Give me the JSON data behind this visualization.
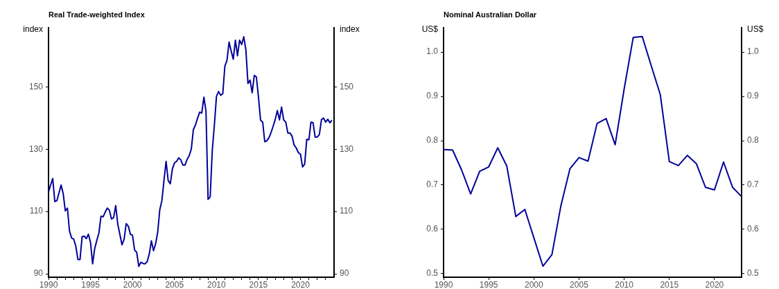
{
  "chart_data": [
    {
      "type": "line",
      "title": "Real Trade-weighted Index",
      "ylabel": "index",
      "y2label": "index",
      "x": [
        1990,
        1990.25,
        1990.5,
        1990.75,
        1991,
        1991.25,
        1991.5,
        1991.75,
        1992,
        1992.25,
        1992.5,
        1992.75,
        1993,
        1993.25,
        1993.5,
        1993.75,
        1994,
        1994.25,
        1994.5,
        1994.75,
        1995,
        1995.25,
        1995.5,
        1995.75,
        1996,
        1996.25,
        1996.5,
        1996.75,
        1997,
        1997.25,
        1997.5,
        1997.75,
        1998,
        1998.25,
        1998.5,
        1998.75,
        1999,
        1999.25,
        1999.5,
        1999.75,
        2000,
        2000.25,
        2000.5,
        2000.75,
        2001,
        2001.25,
        2001.5,
        2001.75,
        2002,
        2002.25,
        2002.5,
        2002.75,
        2003,
        2003.25,
        2003.5,
        2003.75,
        2004,
        2004.25,
        2004.5,
        2004.75,
        2005,
        2005.25,
        2005.5,
        2005.75,
        2006,
        2006.25,
        2006.5,
        2006.75,
        2007,
        2007.25,
        2007.5,
        2007.75,
        2008,
        2008.25,
        2008.5,
        2008.75,
        2009,
        2009.25,
        2009.5,
        2009.75,
        2010,
        2010.25,
        2010.5,
        2010.75,
        2011,
        2011.25,
        2011.5,
        2011.75,
        2012,
        2012.25,
        2012.5,
        2012.75,
        2013,
        2013.25,
        2013.5,
        2013.75,
        2014,
        2014.25,
        2014.5,
        2014.75,
        2015,
        2015.25,
        2015.5,
        2015.75,
        2016,
        2016.25,
        2016.5,
        2016.75,
        2017,
        2017.25,
        2017.5,
        2017.75,
        2018,
        2018.25,
        2018.5,
        2018.75,
        2019,
        2019.25,
        2019.5,
        2019.75,
        2020,
        2020.25,
        2020.5,
        2020.75,
        2021,
        2021.25,
        2021.5,
        2021.75,
        2022,
        2022.25,
        2022.5,
        2022.75,
        2023,
        2023.25,
        2023.5,
        2023.75
      ],
      "series": [
        {
          "color": "#000099",
          "values": [
            116.3,
            118.5,
            120.6,
            113.2,
            113.5,
            116.0,
            118.5,
            115.7,
            110.2,
            111.1,
            103.7,
            101.5,
            101.1,
            98.9,
            94.6,
            94.6,
            101.9,
            102.1,
            101.3,
            102.7,
            100.1,
            93.2,
            98.1,
            100.7,
            103.1,
            108.5,
            108.3,
            109.8,
            111.1,
            110.4,
            107.6,
            108.0,
            111.9,
            105.9,
            102.6,
            99.3,
            101.1,
            106.1,
            105.3,
            102.7,
            102.4,
            97.6,
            96.9,
            92.4,
            93.7,
            93.3,
            93.2,
            93.9,
            96.4,
            100.6,
            97.4,
            99.6,
            103.3,
            110.6,
            113.5,
            120.0,
            126.1,
            119.9,
            118.9,
            123.7,
            125.6,
            126.1,
            127.2,
            126.6,
            124.9,
            124.9,
            126.7,
            127.9,
            130.0,
            136.3,
            137.8,
            140.0,
            141.9,
            141.6,
            146.7,
            142.2,
            113.9,
            114.7,
            129.6,
            137.8,
            147.0,
            148.5,
            147.3,
            147.8,
            156.7,
            158.5,
            164.4,
            161.5,
            158.9,
            165.0,
            160.0,
            165.0,
            163.6,
            166.1,
            161.9,
            151.1,
            152.2,
            148.1,
            153.7,
            153.2,
            146.7,
            139.3,
            138.7,
            132.4,
            132.7,
            133.7,
            135.4,
            137.4,
            139.6,
            142.4,
            139.4,
            143.5,
            139.4,
            138.7,
            135.2,
            135.2,
            134.2,
            131.3,
            130.4,
            128.9,
            128.4,
            124.3,
            125.2,
            133.2,
            133.0,
            138.7,
            138.5,
            133.9,
            133.9,
            134.7,
            139.5,
            140.0,
            138.7,
            139.6,
            138.5,
            139.3
          ]
        }
      ],
      "xlim": [
        1990,
        2024
      ],
      "xticks": [
        1990,
        {
          "value": 1991,
          "label": null
        },
        {
          "value": 1992,
          "label": null
        },
        {
          "value": 1993,
          "label": null
        },
        {
          "value": 1994,
          "label": null
        },
        1995,
        {
          "value": 1996,
          "label": null
        },
        {
          "value": 1997,
          "label": null
        },
        {
          "value": 1998,
          "label": null
        },
        {
          "value": 1999,
          "label": null
        },
        2000,
        {
          "value": 2001,
          "label": null
        },
        {
          "value": 2002,
          "label": null
        },
        {
          "value": 2003,
          "label": null
        },
        {
          "value": 2004,
          "label": null
        },
        2005,
        {
          "value": 2006,
          "label": null
        },
        {
          "value": 2007,
          "label": null
        },
        {
          "value": 2008,
          "label": null
        },
        {
          "value": 2009,
          "label": null
        },
        2010,
        {
          "value": 2011,
          "label": null
        },
        {
          "value": 2012,
          "label": null
        },
        {
          "value": 2013,
          "label": null
        },
        {
          "value": 2014,
          "label": null
        },
        2015,
        {
          "value": 2016,
          "label": null
        },
        {
          "value": 2017,
          "label": null
        },
        {
          "value": 2018,
          "label": null
        },
        {
          "value": 2019,
          "label": null
        },
        2020,
        {
          "value": 2021,
          "label": null
        },
        {
          "value": 2022,
          "label": null
        },
        {
          "value": 2023,
          "label": null
        }
      ],
      "ylim": [
        88.9,
        169
      ],
      "yticks": [
        90,
        110,
        130,
        150
      ],
      "y2lim": [
        88.9,
        169
      ],
      "y2ticks": [
        90,
        110,
        130,
        150
      ],
      "grid": false,
      "legend": false,
      "marker": "none",
      "line_style": "solid"
    },
    {
      "type": "line",
      "title": "Nominal Australian Dollar",
      "ylabel": "US$",
      "y2label": "US$",
      "x": [
        1990,
        1991,
        1992,
        1993,
        1994,
        1995,
        1996,
        1997,
        1998,
        1999,
        2000,
        2001,
        2002,
        2003,
        2004,
        2005,
        2006,
        2007,
        2008,
        2009,
        2010,
        2011,
        2012,
        2013,
        2014,
        2015,
        2016,
        2017,
        2018,
        2019,
        2020,
        2021,
        2022,
        2023
      ],
      "series": [
        {
          "color": "#000099",
          "values": [
            0.78,
            0.779,
            0.734,
            0.68,
            0.731,
            0.741,
            0.784,
            0.743,
            0.629,
            0.645,
            0.581,
            0.517,
            0.543,
            0.654,
            0.737,
            0.762,
            0.754,
            0.839,
            0.85,
            0.791,
            0.917,
            1.033,
            1.035,
            0.969,
            0.904,
            0.753,
            0.744,
            0.767,
            0.748,
            0.695,
            0.689,
            0.752,
            0.695,
            0.674
          ]
        }
      ],
      "xlim": [
        1990,
        2023
      ],
      "xticks": [
        1990,
        1995,
        2000,
        2005,
        2010,
        2015,
        2020
      ],
      "ylim": [
        0.492,
        1.055
      ],
      "yticks": [
        0.5,
        0.6,
        0.7,
        0.8,
        0.9,
        {
          "value": 1.0,
          "label": "1.0"
        }
      ],
      "y2lim": [
        0.492,
        1.055
      ],
      "y2ticks": [
        0.5,
        0.6,
        0.7,
        0.8,
        0.9,
        {
          "value": 1.0,
          "label": "1.0"
        }
      ],
      "grid": false,
      "legend": false,
      "marker": "none",
      "line_style": "solid"
    }
  ]
}
